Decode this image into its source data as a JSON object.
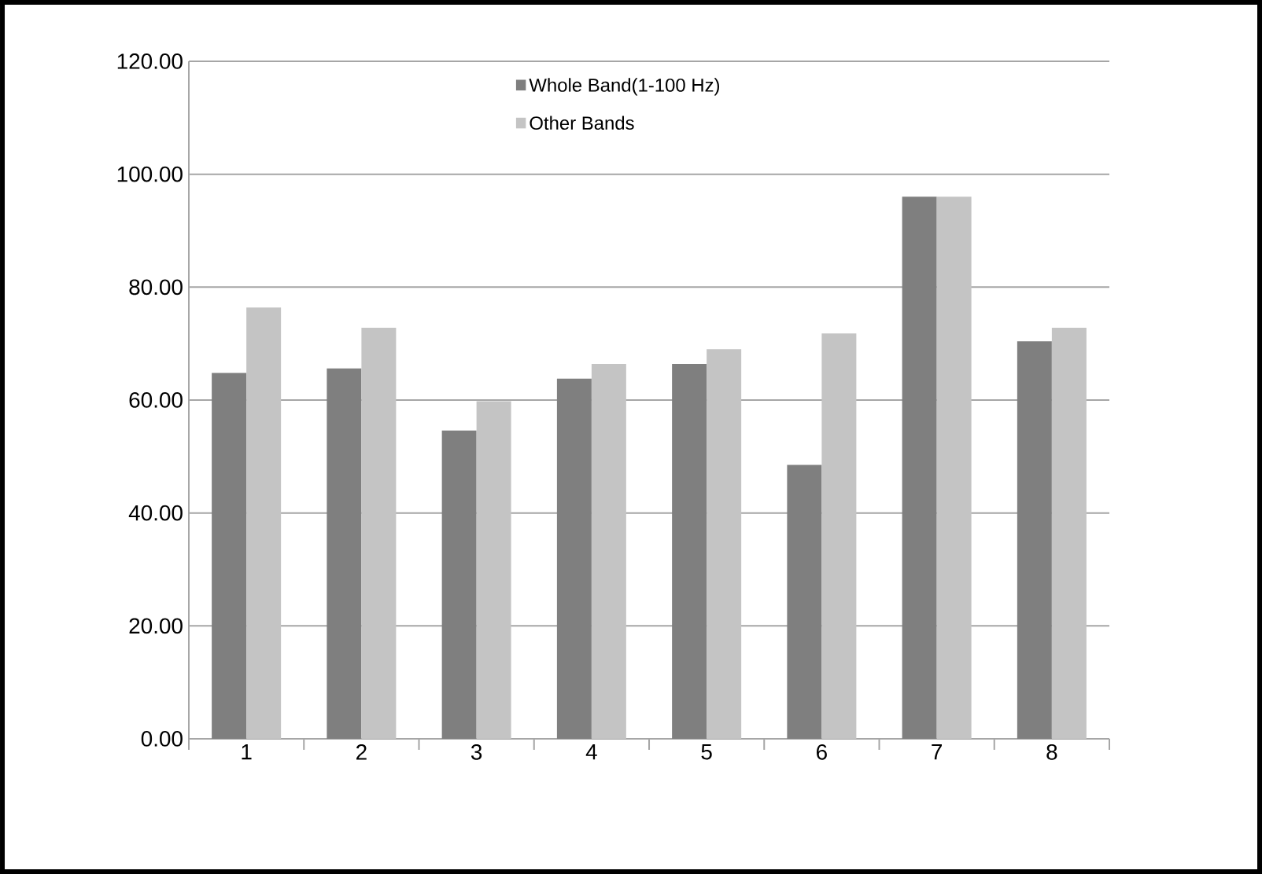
{
  "chart_data": {
    "type": "bar",
    "categories": [
      "1",
      "2",
      "3",
      "4",
      "5",
      "6",
      "7",
      "8"
    ],
    "series": [
      {
        "name": "Whole Band(1-100 Hz)",
        "color": "#7f7f7f",
        "values": [
          64.8,
          65.6,
          54.6,
          63.8,
          66.4,
          48.5,
          96.0,
          70.4
        ]
      },
      {
        "name": "Other Bands",
        "color": "#c4c4c4",
        "values": [
          76.4,
          72.8,
          59.8,
          66.4,
          69.0,
          71.8,
          96.0,
          72.8
        ]
      }
    ],
    "ylim": [
      0,
      120
    ],
    "yticks": [
      {
        "value": 0,
        "label": "0.00"
      },
      {
        "value": 20,
        "label": "20.00"
      },
      {
        "value": 40,
        "label": "40.00"
      },
      {
        "value": 60,
        "label": "60.00"
      },
      {
        "value": 80,
        "label": "80.00"
      },
      {
        "value": 100,
        "label": "100.00"
      },
      {
        "value": 120,
        "label": "120.00"
      }
    ],
    "grid": "y",
    "legend": "top"
  }
}
